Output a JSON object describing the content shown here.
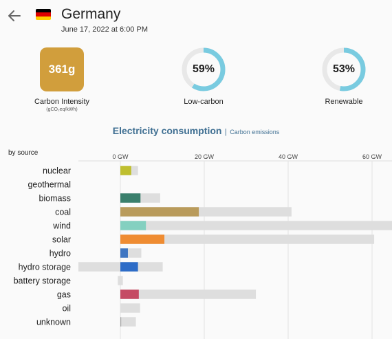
{
  "header": {
    "country": "Germany",
    "datetime": "June 17, 2022 at 6:00 PM",
    "flag_colors": [
      "#000000",
      "#dd0000",
      "#ffce00"
    ]
  },
  "metrics": {
    "carbon_intensity": {
      "value": "361g",
      "label": "Carbon Intensity",
      "unit": "(gCO₂eq/kWh)",
      "color": "#d19e3c"
    },
    "low_carbon": {
      "value": "59%",
      "fraction": 0.59,
      "label": "Low-carbon"
    },
    "renewable": {
      "value": "53%",
      "fraction": 0.53,
      "label": "Renewable"
    },
    "donut_color": "#79cbe0",
    "donut_track_color": "#e8e8e8"
  },
  "toggle": {
    "active": "Electricity consumption",
    "separator": "|",
    "inactive": "Carbon emissions"
  },
  "chart_data": {
    "type": "bar",
    "ylabel": "by source",
    "x_ticks": [
      "0 GW",
      "20 GW",
      "40 GW",
      "60 GW"
    ],
    "tick_values": [
      0,
      20,
      40,
      60
    ],
    "categories": [
      "nuclear",
      "geothermal",
      "biomass",
      "coal",
      "wind",
      "solar",
      "hydro",
      "hydro storage",
      "battery storage",
      "gas",
      "oil",
      "unknown"
    ],
    "production": [
      2.6,
      0,
      4.8,
      18.7,
      6.1,
      10.5,
      1.8,
      4.2,
      0,
      4.4,
      0,
      0.2
    ],
    "capacity_min": [
      0,
      0,
      0,
      0,
      0,
      0,
      0,
      -10,
      -0.6,
      0,
      0,
      0
    ],
    "capacity_max": [
      4.2,
      0,
      9.5,
      40.8,
      65.9,
      60.5,
      5.0,
      10.1,
      0.6,
      32.3,
      4.7,
      3.7
    ],
    "colors": [
      "#bfbf2f",
      "#c9a068",
      "#3a7f6c",
      "#b99b5b",
      "#84d0c0",
      "#ef8c32",
      "#3f76c2",
      "#2d6cc7",
      "#b6bbc0",
      "#c54b64",
      "#867d66",
      "#a7a7a7"
    ],
    "x_range": [
      -10,
      66
    ]
  }
}
